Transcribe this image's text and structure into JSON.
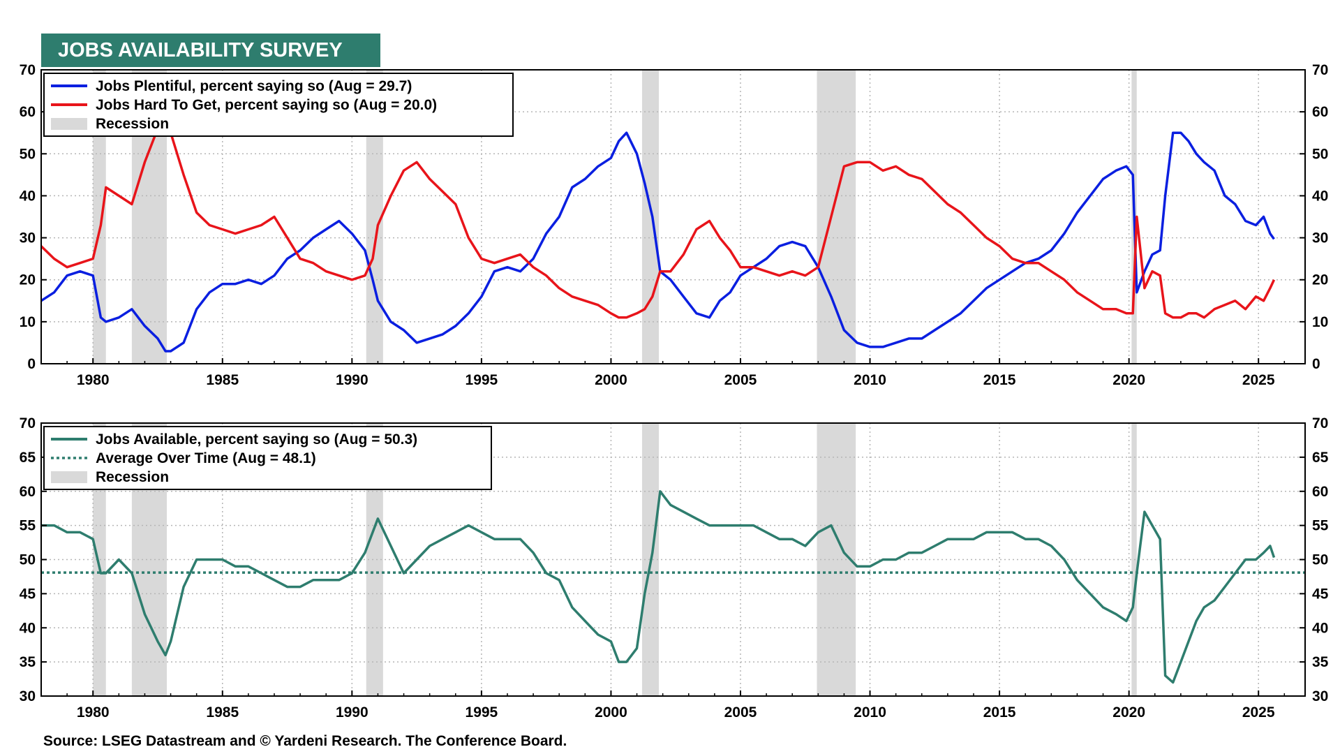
{
  "header": {
    "title": "JOBS AVAILABILITY SURVEY"
  },
  "footer": {
    "source": "Source: LSEG Datastream and © Yardeni Research. The Conference Board."
  },
  "colors": {
    "badge": "#2e7d6e",
    "plentiful": "#0a1fe0",
    "hard_to_get": "#e8141a",
    "available": "#2e7d6e",
    "recession": "#d9d9d9",
    "grid": "#b5b5b5"
  },
  "recessions": [
    [
      1980.0,
      1980.5
    ],
    [
      1981.5,
      1982.85
    ],
    [
      1990.55,
      1991.2
    ],
    [
      2001.2,
      2001.85
    ],
    [
      2007.95,
      2009.45
    ],
    [
      2020.1,
      2020.3
    ]
  ],
  "chart_data": [
    {
      "type": "line",
      "x_axis": {
        "min": 1978,
        "max": 2026.8,
        "ticks": [
          1980,
          1985,
          1990,
          1995,
          2000,
          2005,
          2010,
          2015,
          2020,
          2025
        ]
      },
      "ylim": [
        0,
        70
      ],
      "yticks": [
        0,
        10,
        20,
        30,
        40,
        50,
        60,
        70
      ],
      "grid": true,
      "legend": {
        "position": "top-left",
        "entries": [
          "Jobs Plentiful, percent saying so (Aug = 29.7)",
          "Jobs Hard To Get, percent saying so (Aug = 20.0)",
          "Recession"
        ]
      },
      "series": [
        {
          "name": "Jobs Plentiful, percent saying so (Aug = 29.7)",
          "x": [
            1978.0,
            1978.5,
            1979.0,
            1979.5,
            1980.0,
            1980.3,
            1980.5,
            1981.0,
            1981.5,
            1982.0,
            1982.5,
            1982.8,
            1983.0,
            1983.5,
            1984.0,
            1984.5,
            1985.0,
            1985.5,
            1986.0,
            1986.5,
            1987.0,
            1987.5,
            1988.0,
            1988.5,
            1989.0,
            1989.5,
            1990.0,
            1990.5,
            1990.8,
            1991.0,
            1991.5,
            1992.0,
            1992.5,
            1993.0,
            1993.5,
            1994.0,
            1994.5,
            1995.0,
            1995.5,
            1996.0,
            1996.5,
            1997.0,
            1997.5,
            1998.0,
            1998.5,
            1999.0,
            1999.5,
            2000.0,
            2000.3,
            2000.6,
            2001.0,
            2001.3,
            2001.6,
            2001.9,
            2002.3,
            2002.8,
            2003.3,
            2003.8,
            2004.2,
            2004.6,
            2005.0,
            2005.5,
            2006.0,
            2006.5,
            2007.0,
            2007.5,
            2008.0,
            2008.5,
            2009.0,
            2009.5,
            2010.0,
            2010.5,
            2011.0,
            2011.5,
            2012.0,
            2012.5,
            2013.0,
            2013.5,
            2014.0,
            2014.5,
            2015.0,
            2015.5,
            2016.0,
            2016.5,
            2017.0,
            2017.5,
            2018.0,
            2018.5,
            2019.0,
            2019.5,
            2019.9,
            2020.15,
            2020.3,
            2020.6,
            2020.9,
            2021.2,
            2021.4,
            2021.7,
            2022.0,
            2022.3,
            2022.6,
            2022.9,
            2023.3,
            2023.7,
            2024.1,
            2024.5,
            2024.9,
            2025.2,
            2025.45,
            2025.6
          ],
          "values": [
            15,
            17,
            21,
            22,
            21,
            11,
            10,
            11,
            13,
            9,
            6,
            3,
            3,
            5,
            13,
            17,
            19,
            19,
            20,
            19,
            21,
            25,
            27,
            30,
            32,
            34,
            31,
            27,
            20,
            15,
            10,
            8,
            5,
            6,
            7,
            9,
            12,
            16,
            22,
            23,
            22,
            25,
            31,
            35,
            42,
            44,
            47,
            49,
            53,
            55,
            50,
            43,
            35,
            22,
            20,
            16,
            12,
            11,
            15,
            17,
            21,
            23,
            25,
            28,
            29,
            28,
            23,
            16,
            8,
            5,
            4,
            4,
            5,
            6,
            6,
            8,
            10,
            12,
            15,
            18,
            20,
            22,
            24,
            25,
            27,
            31,
            36,
            40,
            44,
            46,
            47,
            45,
            17,
            22,
            26,
            27,
            40,
            55,
            55,
            53,
            50,
            48,
            46,
            40,
            38,
            34,
            33,
            35,
            31,
            29.7
          ]
        },
        {
          "name": "Jobs Hard To Get, percent saying so (Aug = 20.0)",
          "x": [
            1978.0,
            1978.5,
            1979.0,
            1979.5,
            1980.0,
            1980.3,
            1980.5,
            1981.0,
            1981.5,
            1982.0,
            1982.5,
            1982.8,
            1983.0,
            1983.5,
            1984.0,
            1984.5,
            1985.0,
            1985.5,
            1986.0,
            1986.5,
            1987.0,
            1987.5,
            1988.0,
            1988.5,
            1989.0,
            1989.5,
            1990.0,
            1990.5,
            1990.8,
            1991.0,
            1991.5,
            1992.0,
            1992.5,
            1993.0,
            1993.5,
            1994.0,
            1994.5,
            1995.0,
            1995.5,
            1996.0,
            1996.5,
            1997.0,
            1997.5,
            1998.0,
            1998.5,
            1999.0,
            1999.5,
            2000.0,
            2000.3,
            2000.6,
            2001.0,
            2001.3,
            2001.6,
            2001.9,
            2002.3,
            2002.8,
            2003.3,
            2003.8,
            2004.2,
            2004.6,
            2005.0,
            2005.5,
            2006.0,
            2006.5,
            2007.0,
            2007.5,
            2008.0,
            2008.5,
            2009.0,
            2009.5,
            2010.0,
            2010.5,
            2011.0,
            2011.5,
            2012.0,
            2012.5,
            2013.0,
            2013.5,
            2014.0,
            2014.5,
            2015.0,
            2015.5,
            2016.0,
            2016.5,
            2017.0,
            2017.5,
            2018.0,
            2018.5,
            2019.0,
            2019.5,
            2019.9,
            2020.15,
            2020.3,
            2020.6,
            2020.9,
            2021.2,
            2021.4,
            2021.7,
            2022.0,
            2022.3,
            2022.6,
            2022.9,
            2023.3,
            2023.7,
            2024.1,
            2024.5,
            2024.9,
            2025.2,
            2025.45,
            2025.6
          ],
          "values": [
            28,
            25,
            23,
            24,
            25,
            33,
            42,
            40,
            38,
            48,
            56,
            58,
            55,
            45,
            36,
            33,
            32,
            31,
            32,
            33,
            35,
            30,
            25,
            24,
            22,
            21,
            20,
            21,
            25,
            33,
            40,
            46,
            48,
            44,
            41,
            38,
            30,
            25,
            24,
            25,
            26,
            23,
            21,
            18,
            16,
            15,
            14,
            12,
            11,
            11,
            12,
            13,
            16,
            22,
            22,
            26,
            32,
            34,
            30,
            27,
            23,
            23,
            22,
            21,
            22,
            21,
            23,
            35,
            47,
            48,
            48,
            46,
            47,
            45,
            44,
            41,
            38,
            36,
            33,
            30,
            28,
            25,
            24,
            24,
            22,
            20,
            17,
            15,
            13,
            13,
            12,
            12,
            35,
            18,
            22,
            21,
            12,
            11,
            11,
            12,
            12,
            11,
            13,
            14,
            15,
            13,
            16,
            15,
            18,
            20.0
          ]
        }
      ]
    },
    {
      "type": "line",
      "x_axis": {
        "min": 1978,
        "max": 2026.8,
        "ticks": [
          1980,
          1985,
          1990,
          1995,
          2000,
          2005,
          2010,
          2015,
          2020,
          2025
        ]
      },
      "ylim": [
        30,
        70
      ],
      "yticks": [
        30,
        35,
        40,
        45,
        50,
        55,
        60,
        65,
        70
      ],
      "grid": true,
      "legend": {
        "position": "top-left",
        "entries": [
          "Jobs Available, percent saying so (Aug = 50.3)",
          "Average Over Time (Aug = 48.1)",
          "Recession"
        ]
      },
      "average": 48.1,
      "series": [
        {
          "name": "Jobs Available, percent saying so (Aug = 50.3)",
          "x": [
            1978.0,
            1978.5,
            1979.0,
            1979.5,
            1980.0,
            1980.3,
            1980.5,
            1981.0,
            1981.5,
            1982.0,
            1982.5,
            1982.8,
            1983.0,
            1983.5,
            1984.0,
            1984.5,
            1985.0,
            1985.5,
            1986.0,
            1986.5,
            1987.0,
            1987.5,
            1988.0,
            1988.5,
            1989.0,
            1989.5,
            1990.0,
            1990.5,
            1990.8,
            1991.0,
            1991.5,
            1992.0,
            1992.5,
            1993.0,
            1993.5,
            1994.0,
            1994.5,
            1995.0,
            1995.5,
            1996.0,
            1996.5,
            1997.0,
            1997.5,
            1998.0,
            1998.5,
            1999.0,
            1999.5,
            2000.0,
            2000.3,
            2000.6,
            2001.0,
            2001.3,
            2001.6,
            2001.9,
            2002.3,
            2002.8,
            2003.3,
            2003.8,
            2004.2,
            2004.6,
            2005.0,
            2005.5,
            2006.0,
            2006.5,
            2007.0,
            2007.5,
            2008.0,
            2008.5,
            2009.0,
            2009.5,
            2010.0,
            2010.5,
            2011.0,
            2011.5,
            2012.0,
            2012.5,
            2013.0,
            2013.5,
            2014.0,
            2014.5,
            2015.0,
            2015.5,
            2016.0,
            2016.5,
            2017.0,
            2017.5,
            2018.0,
            2018.5,
            2019.0,
            2019.5,
            2019.9,
            2020.15,
            2020.3,
            2020.6,
            2020.9,
            2021.2,
            2021.4,
            2021.7,
            2022.0,
            2022.3,
            2022.6,
            2022.9,
            2023.3,
            2023.7,
            2024.1,
            2024.5,
            2024.9,
            2025.2,
            2025.45,
            2025.6
          ],
          "values": [
            55,
            55,
            54,
            54,
            53,
            48,
            48,
            50,
            48,
            42,
            38,
            36,
            38,
            46,
            50,
            50,
            50,
            49,
            49,
            48,
            47,
            46,
            46,
            47,
            47,
            47,
            48,
            51,
            54,
            56,
            52,
            48,
            50,
            52,
            53,
            54,
            55,
            54,
            53,
            53,
            53,
            51,
            48,
            47,
            43,
            41,
            39,
            38,
            35,
            35,
            37,
            45,
            51,
            60,
            58,
            57,
            56,
            55,
            55,
            55,
            55,
            55,
            54,
            53,
            53,
            52,
            54,
            55,
            51,
            49,
            49,
            50,
            50,
            51,
            51,
            52,
            53,
            53,
            53,
            54,
            54,
            54,
            53,
            53,
            52,
            50,
            47,
            45,
            43,
            42,
            41,
            43,
            48,
            57,
            55,
            53,
            33,
            32,
            35,
            38,
            41,
            43,
            44,
            46,
            48,
            50,
            50,
            51,
            52,
            50.3
          ]
        }
      ]
    }
  ]
}
